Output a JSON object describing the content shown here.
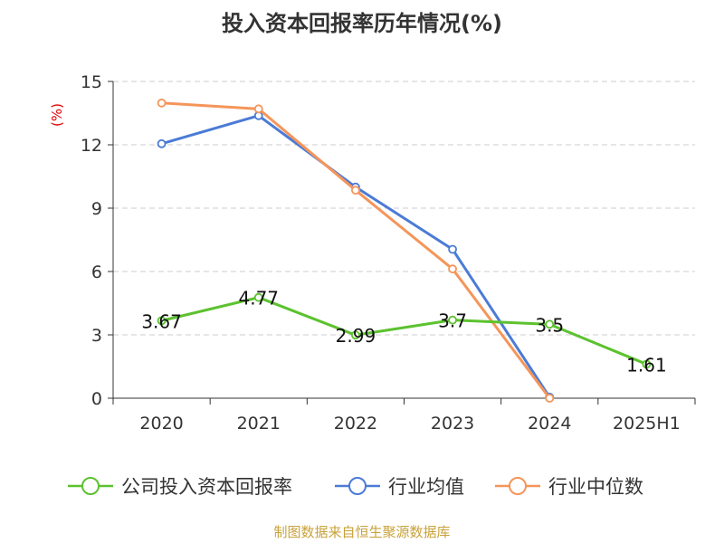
{
  "chart_data": {
    "type": "line",
    "title": "投入资本回报率历年情况(%)",
    "unit_label": "(%)",
    "categories": [
      "2020",
      "2021",
      "2022",
      "2023",
      "2024",
      "2025H1"
    ],
    "ylim": [
      0,
      15
    ],
    "yticks": [
      0,
      3,
      6,
      9,
      12,
      15
    ],
    "grid": true,
    "legend_position": "bottom",
    "series": [
      {
        "name": "公司投入资本回报率",
        "color": "#5cc22f",
        "values": [
          3.67,
          4.77,
          2.99,
          3.7,
          3.5,
          1.61
        ],
        "labels": [
          "3.67",
          "4.77",
          "2.99",
          "3.7",
          "3.5",
          "1.61"
        ]
      },
      {
        "name": "行业均值",
        "color": "#4b7bd6",
        "values": [
          12.05,
          13.38,
          10.0,
          7.05,
          0.05,
          null
        ]
      },
      {
        "name": "行业中位数",
        "color": "#f5955a",
        "values": [
          13.98,
          13.7,
          9.85,
          6.12,
          0.0,
          null
        ]
      }
    ]
  },
  "source": "制图数据来自恒生聚源数据库"
}
